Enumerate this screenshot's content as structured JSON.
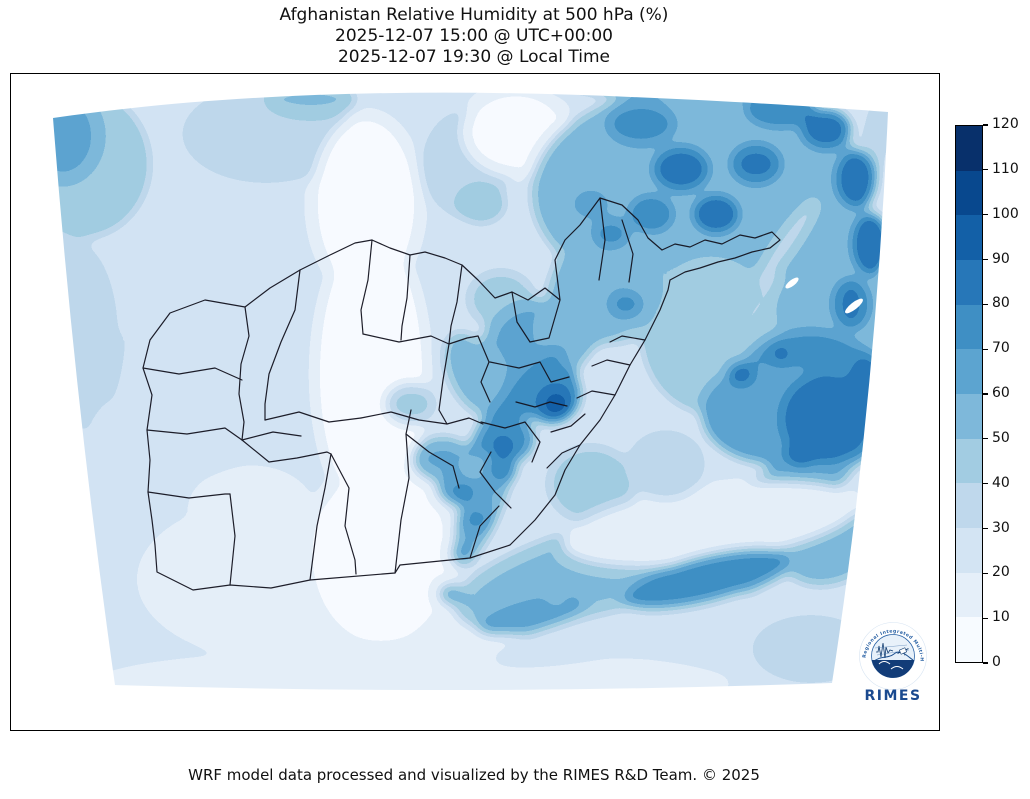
{
  "title": {
    "line1": "Afghanistan Relative Humidity at 500 hPa (%)",
    "line2": "2025-12-07 15:00 @ UTC+00:00",
    "line3": "2025-12-07 19:30 @ Local Time"
  },
  "colorbar": {
    "min": 0,
    "max": 120,
    "tick_step": 10,
    "ticks": [
      "0",
      "10",
      "20",
      "30",
      "40",
      "50",
      "60",
      "70",
      "80",
      "90",
      "100",
      "110",
      "120"
    ],
    "palette_light_to_dark": [
      "#f7fbff",
      "#e5eff9",
      "#d3e4f3",
      "#bfd8ec",
      "#a2cce2",
      "#7eb8da",
      "#5ca4d0",
      "#3f8fc4",
      "#2777b8",
      "#1360a7",
      "#08488e",
      "#08306b"
    ]
  },
  "chart_data": {
    "type": "heatmap",
    "title": "Afghanistan Relative Humidity at 500 hPa (%)",
    "variable": "Relative Humidity at 500 hPa",
    "units": "%",
    "valid_time_utc": "2025-12-07 15:00 @ UTC+00:00",
    "valid_time_local": "2025-12-07 19:30 @ Local Time",
    "colorbar_levels": [
      0,
      10,
      20,
      30,
      40,
      50,
      60,
      70,
      80,
      90,
      100,
      110,
      120
    ],
    "colormap": "Blues (discrete, 12 bands)",
    "legend_position": "right",
    "notes_visible_pattern": "High humidity (60-110%) over northeast and east mountains; low humidity (0-30%) over southwest and central band; moderate diagonal bands in southeast"
  },
  "logo": {
    "ring_text": "Regional Integrated Multi-Hazard Early Warning System",
    "name": "RIMES"
  },
  "footer": {
    "credit": "WRF model data processed and visualized by the RIMES R&D Team. © 2025"
  }
}
